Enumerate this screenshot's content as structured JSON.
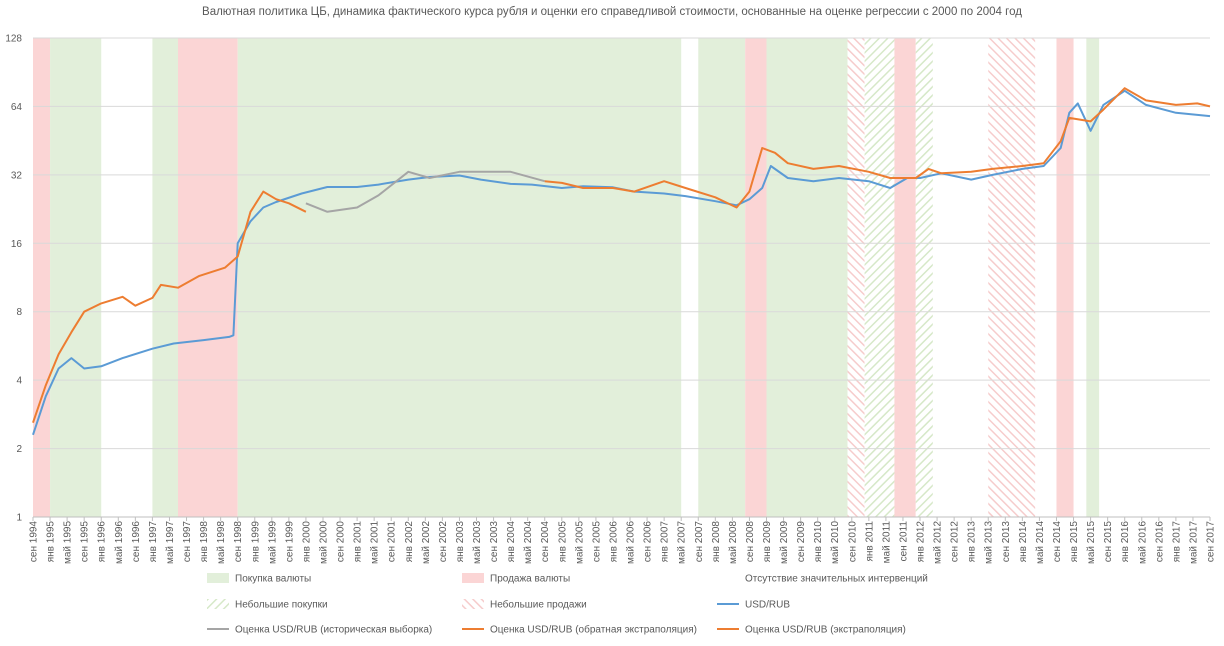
{
  "chart_data": {
    "type": "line",
    "title": "Валютная политика ЦБ,  динамика фактического  курса рубля и оценки его справедливой стоимости, основанные на оценке регрессии с 2000 по 2004 год",
    "yscale": "log2",
    "ylim": [
      1,
      128
    ],
    "yticks": [
      1,
      2,
      4,
      8,
      16,
      32,
      64,
      128
    ],
    "grid": true,
    "xlim": [
      "1994-09",
      "2017-09"
    ],
    "xticks": [
      {
        "value": "1994-09",
        "label": "сен 1994"
      },
      {
        "value": "1995-01",
        "label": "янв 1995"
      },
      {
        "value": "1995-05",
        "label": "май 1995"
      },
      {
        "value": "1995-09",
        "label": "сен 1995"
      },
      {
        "value": "1996-01",
        "label": "янв 1996"
      },
      {
        "value": "1996-05",
        "label": "май 1996"
      },
      {
        "value": "1996-09",
        "label": "сен 1996"
      },
      {
        "value": "1997-01",
        "label": "янв 1997"
      },
      {
        "value": "1997-05",
        "label": "май 1997"
      },
      {
        "value": "1997-09",
        "label": "сен 1997"
      },
      {
        "value": "1998-01",
        "label": "янв 1998"
      },
      {
        "value": "1998-05",
        "label": "май 1998"
      },
      {
        "value": "1998-09",
        "label": "сен 1998"
      },
      {
        "value": "1999-01",
        "label": "янв 1999"
      },
      {
        "value": "1999-05",
        "label": "май 1999"
      },
      {
        "value": "1999-09",
        "label": "сен 1999"
      },
      {
        "value": "2000-01",
        "label": "янв 2000"
      },
      {
        "value": "2000-05",
        "label": "май 2000"
      },
      {
        "value": "2000-09",
        "label": "сен 2000"
      },
      {
        "value": "2001-01",
        "label": "янв 2001"
      },
      {
        "value": "2001-05",
        "label": "май 2001"
      },
      {
        "value": "2001-09",
        "label": "сен 2001"
      },
      {
        "value": "2002-01",
        "label": "янв 2002"
      },
      {
        "value": "2002-05",
        "label": "май 2002"
      },
      {
        "value": "2002-09",
        "label": "сен 2002"
      },
      {
        "value": "2003-01",
        "label": "янв 2003"
      },
      {
        "value": "2003-05",
        "label": "май 2003"
      },
      {
        "value": "2003-09",
        "label": "сен 2003"
      },
      {
        "value": "2004-01",
        "label": "янв 2004"
      },
      {
        "value": "2004-05",
        "label": "май 2004"
      },
      {
        "value": "2004-09",
        "label": "сен 2004"
      },
      {
        "value": "2005-01",
        "label": "янв 2005"
      },
      {
        "value": "2005-05",
        "label": "май 2005"
      },
      {
        "value": "2005-09",
        "label": "сен 2005"
      },
      {
        "value": "2006-01",
        "label": "янв 2006"
      },
      {
        "value": "2006-05",
        "label": "май 2006"
      },
      {
        "value": "2006-09",
        "label": "сен 2006"
      },
      {
        "value": "2007-01",
        "label": "янв 2007"
      },
      {
        "value": "2007-05",
        "label": "май 2007"
      },
      {
        "value": "2007-09",
        "label": "сен 2007"
      },
      {
        "value": "2008-01",
        "label": "янв 2008"
      },
      {
        "value": "2008-05",
        "label": "май 2008"
      },
      {
        "value": "2008-09",
        "label": "сен 2008"
      },
      {
        "value": "2009-01",
        "label": "янв 2009"
      },
      {
        "value": "2009-05",
        "label": "май 2009"
      },
      {
        "value": "2009-09",
        "label": "сен 2009"
      },
      {
        "value": "2010-01",
        "label": "янв 2010"
      },
      {
        "value": "2010-05",
        "label": "май 2010"
      },
      {
        "value": "2010-09",
        "label": "сен 2010"
      },
      {
        "value": "2011-01",
        "label": "янв 2011"
      },
      {
        "value": "2011-05",
        "label": "май 2011"
      },
      {
        "value": "2011-09",
        "label": "сен 2011"
      },
      {
        "value": "2012-01",
        "label": "янв 2012"
      },
      {
        "value": "2012-05",
        "label": "май 2012"
      },
      {
        "value": "2012-09",
        "label": "сен 2012"
      },
      {
        "value": "2013-01",
        "label": "янв 2013"
      },
      {
        "value": "2013-05",
        "label": "май 2013"
      },
      {
        "value": "2013-09",
        "label": "сен 2013"
      },
      {
        "value": "2014-01",
        "label": "янв 2014"
      },
      {
        "value": "2014-05",
        "label": "май 2014"
      },
      {
        "value": "2014-09",
        "label": "сен 2014"
      },
      {
        "value": "2015-01",
        "label": "янв 2015"
      },
      {
        "value": "2015-05",
        "label": "май 2015"
      },
      {
        "value": "2015-09",
        "label": "сен 2015"
      },
      {
        "value": "2016-01",
        "label": "янв 2016"
      },
      {
        "value": "2016-05",
        "label": "май 2016"
      },
      {
        "value": "2016-09",
        "label": "сен 2016"
      },
      {
        "value": "2017-01",
        "label": "янв 2017"
      },
      {
        "value": "2017-05",
        "label": "май 2017"
      },
      {
        "value": "2017-09",
        "label": "сен 2017"
      }
    ],
    "region_types": [
      {
        "name": "Покупка валюты",
        "kind": "solid",
        "color": "#e2efda"
      },
      {
        "name": "Продажа валюты",
        "kind": "solid",
        "color": "#fbd5d5"
      },
      {
        "name": "Отсутствие значительных интервенций",
        "kind": "none",
        "color": "#ffffff"
      },
      {
        "name": "Небольшие покупки",
        "kind": "hatch",
        "color": "#d6e8c8"
      },
      {
        "name": "Небольшие продажи",
        "kind": "hatch",
        "color": "#f6cccc"
      }
    ],
    "regions": [
      {
        "type": 1,
        "start": "1994-09",
        "end": "1995-01"
      },
      {
        "type": 0,
        "start": "1995-01",
        "end": "1996-01"
      },
      {
        "type": 0,
        "start": "1997-01",
        "end": "1997-07"
      },
      {
        "type": 1,
        "start": "1997-07",
        "end": "1998-09"
      },
      {
        "type": 0,
        "start": "1998-09",
        "end": "2007-05"
      },
      {
        "type": 0,
        "start": "2007-09",
        "end": "2008-08"
      },
      {
        "type": 1,
        "start": "2008-08",
        "end": "2009-01"
      },
      {
        "type": 0,
        "start": "2009-01",
        "end": "2010-08"
      },
      {
        "type": 4,
        "start": "2010-08",
        "end": "2010-12"
      },
      {
        "type": 3,
        "start": "2010-12",
        "end": "2011-07"
      },
      {
        "type": 1,
        "start": "2011-07",
        "end": "2011-12"
      },
      {
        "type": 3,
        "start": "2011-12",
        "end": "2012-04"
      },
      {
        "type": 4,
        "start": "2013-05",
        "end": "2014-04"
      },
      {
        "type": 1,
        "start": "2014-09",
        "end": "2015-01"
      },
      {
        "type": 0,
        "start": "2015-04",
        "end": "2015-07"
      }
    ],
    "series": [
      {
        "name": "USD/RUB",
        "color": "#5b9bd5",
        "x": [
          "1994-09",
          "1994-12",
          "1995-03",
          "1995-06",
          "1995-09",
          "1996-01",
          "1996-06",
          "1997-01",
          "1997-06",
          "1998-01",
          "1998-07",
          "1998-08",
          "1998-09",
          "1998-12",
          "1999-03",
          "1999-06",
          "1999-12",
          "2000-06",
          "2001-01",
          "2001-06",
          "2002-01",
          "2002-06",
          "2003-01",
          "2003-06",
          "2004-01",
          "2004-06",
          "2005-01",
          "2005-06",
          "2006-01",
          "2006-06",
          "2007-01",
          "2007-06",
          "2008-01",
          "2008-06",
          "2008-09",
          "2008-12",
          "2009-02",
          "2009-06",
          "2009-12",
          "2010-06",
          "2011-01",
          "2011-06",
          "2011-10",
          "2012-01",
          "2012-06",
          "2013-01",
          "2013-06",
          "2014-01",
          "2014-06",
          "2014-10",
          "2014-12",
          "2015-02",
          "2015-05",
          "2015-08",
          "2016-01",
          "2016-06",
          "2017-01",
          "2017-09"
        ],
        "values": [
          2.3,
          3.4,
          4.5,
          5.0,
          4.5,
          4.6,
          5.0,
          5.5,
          5.8,
          6.0,
          6.2,
          6.3,
          16,
          20,
          23,
          24.3,
          26.5,
          28.3,
          28.3,
          29,
          30.5,
          31.3,
          31.8,
          30.5,
          29.2,
          29,
          28,
          28.5,
          28.2,
          27,
          26.5,
          25.8,
          24.5,
          23.5,
          25,
          28,
          35,
          31,
          30,
          31,
          30,
          28,
          31,
          31,
          32.5,
          30.5,
          32,
          34,
          35,
          42,
          60,
          66,
          50,
          65,
          75,
          65,
          60,
          58
        ]
      },
      {
        "name": "Оценка USD/RUB (историческая выборка)",
        "color": "#a5a5a5",
        "x": [
          "2000-01",
          "2000-06",
          "2001-01",
          "2001-06",
          "2002-01",
          "2002-06",
          "2003-01",
          "2003-06",
          "2004-01",
          "2004-09"
        ],
        "values": [
          24,
          22,
          23,
          26,
          33,
          31,
          33,
          33,
          33,
          30
        ]
      },
      {
        "name": "Оценка USD/RUB (обратная экстраполяция)",
        "color": "#ed7d31",
        "x": [
          "1994-09",
          "1994-12",
          "1995-03",
          "1995-06",
          "1995-09",
          "1996-01",
          "1996-06",
          "1996-09",
          "1997-01",
          "1997-03",
          "1997-07",
          "1997-12",
          "1998-06",
          "1998-09",
          "1998-12",
          "1999-03",
          "1999-06",
          "1999-09",
          "2000-01"
        ],
        "values": [
          2.6,
          3.8,
          5.2,
          6.5,
          8,
          8.7,
          9.3,
          8.5,
          9.2,
          10.5,
          10.2,
          11.5,
          12.5,
          14,
          22,
          27,
          25,
          24,
          22
        ]
      },
      {
        "name": "Оценка USD/RUB (экстраполяция)",
        "color": "#ed7d31",
        "x": [
          "2004-09",
          "2005-01",
          "2005-06",
          "2006-01",
          "2006-06",
          "2007-01",
          "2007-06",
          "2008-01",
          "2008-06",
          "2008-09",
          "2008-12",
          "2009-03",
          "2009-06",
          "2009-12",
          "2010-06",
          "2011-01",
          "2011-06",
          "2011-12",
          "2012-03",
          "2012-06",
          "2013-01",
          "2013-06",
          "2014-01",
          "2014-06",
          "2014-10",
          "2014-12",
          "2015-05",
          "2015-08",
          "2016-01",
          "2016-06",
          "2017-01",
          "2017-06",
          "2017-09"
        ],
        "values": [
          30,
          29.5,
          28,
          28,
          27,
          30,
          28,
          25.5,
          23,
          27,
          42,
          40,
          36,
          34,
          35,
          33,
          31,
          31,
          34,
          32.5,
          33,
          34,
          35,
          36,
          45,
          57,
          55,
          62,
          77,
          68,
          65,
          66,
          64
        ]
      }
    ]
  }
}
